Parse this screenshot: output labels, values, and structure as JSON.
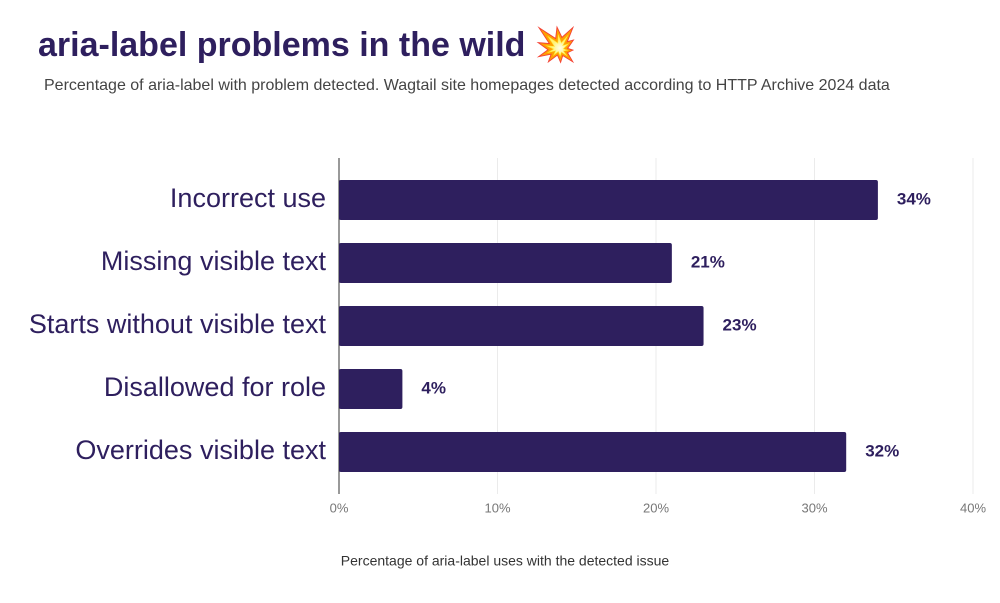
{
  "chart_data": {
    "type": "bar",
    "orientation": "horizontal",
    "title": "aria-label problems in the wild 💥",
    "subtitle": "Percentage of aria-label with problem detected. Wagtail site homepages detected according to HTTP Archive 2024 data",
    "x_label": "Percentage of aria-label uses with the detected issue",
    "categories": [
      "Incorrect use",
      "Missing visible text",
      "Starts without visible text",
      "Disallowed for role",
      "Overrides visible text"
    ],
    "values": [
      34,
      21,
      23,
      4,
      32
    ],
    "value_labels": [
      "34%",
      "21%",
      "23%",
      "4%",
      "32%"
    ],
    "color": "#2e1f5e",
    "xlim": [
      0,
      40
    ],
    "xticks": [
      {
        "value": 0,
        "label": "0%"
      },
      {
        "value": 10,
        "label": "10%"
      },
      {
        "value": 20,
        "label": "20%"
      },
      {
        "value": 30,
        "label": "30%"
      },
      {
        "value": 40,
        "label": "40%"
      }
    ],
    "grid": true
  }
}
